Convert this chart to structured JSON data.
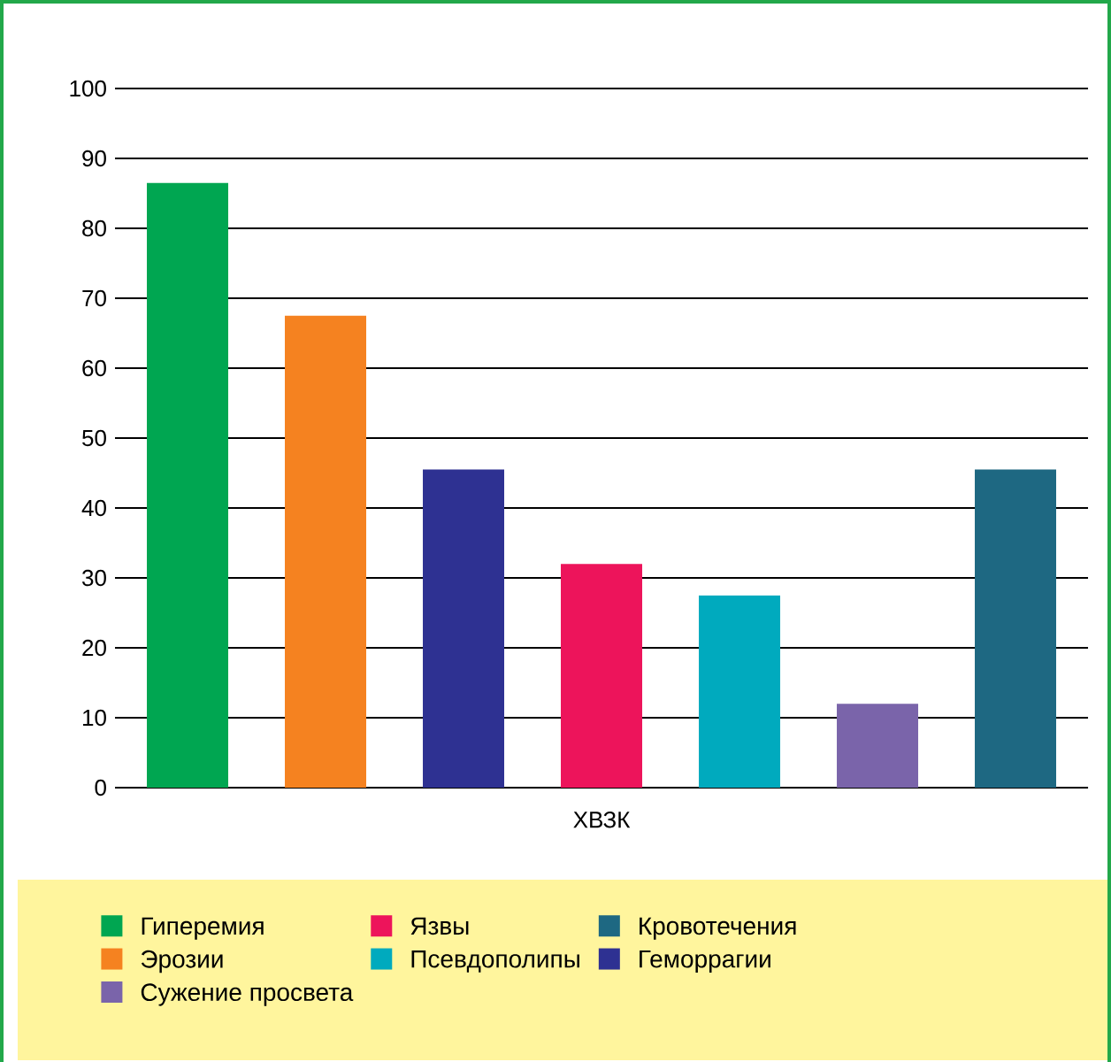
{
  "chart_data": {
    "type": "bar",
    "categories": [
      "ХВЗК"
    ],
    "series": [
      {
        "name": "Гиперемия",
        "color": "#00a651",
        "values": [
          86.5
        ]
      },
      {
        "name": "Эрозии",
        "color": "#f58220",
        "values": [
          67.5
        ]
      },
      {
        "name": "Геморрагии",
        "color": "#2e3192",
        "values": [
          45.5
        ]
      },
      {
        "name": "Язвы",
        "color": "#ed145b",
        "values": [
          32
        ]
      },
      {
        "name": "Псевдополипы",
        "color": "#00aabe",
        "values": [
          27.5
        ]
      },
      {
        "name": "Сужение просвета",
        "color": "#7a64aa",
        "values": [
          12
        ]
      },
      {
        "name": "Кровотечения",
        "color": "#1e6882",
        "values": [
          45.5
        ]
      }
    ],
    "ylim": [
      0,
      100
    ],
    "yticks": [
      0,
      10,
      20,
      30,
      40,
      50,
      60,
      70,
      80,
      90,
      100
    ],
    "grid": "y",
    "legend": "bottom"
  }
}
